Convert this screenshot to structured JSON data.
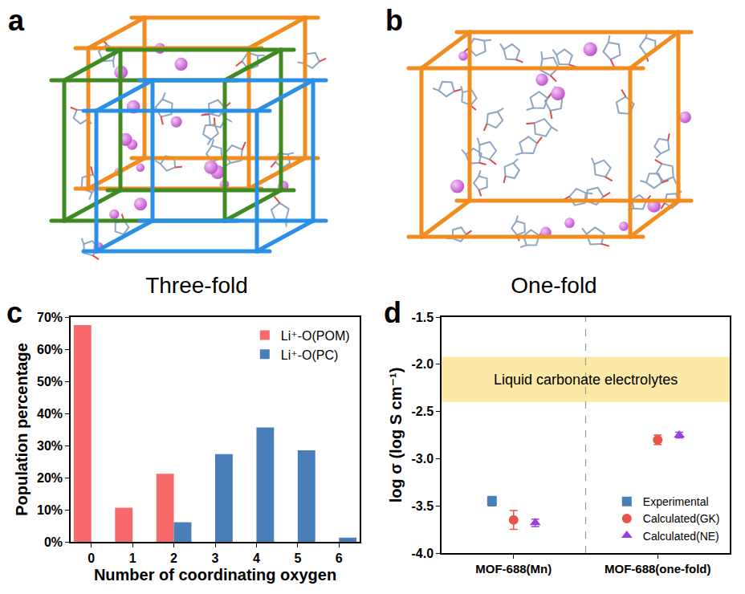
{
  "diagrams": [
    {
      "panel": "a",
      "label": "Three-fold",
      "colors": [
        "#f28c1e",
        "#3f8a22",
        "#2a8fe6"
      ]
    },
    {
      "panel": "b",
      "label": "One-fold",
      "colors": [
        "#f28c1e"
      ]
    }
  ],
  "chart_data": [
    {
      "panel": "c",
      "type": "bar",
      "x_label": "Number of coordinating oxygen",
      "y_label": "Population percentage",
      "x": [
        0,
        1,
        2,
        3,
        4,
        5,
        6
      ],
      "series": [
        {
          "name": "Li⁺-O(POM)",
          "color": "#f7696b",
          "values": [
            67.5,
            10.6,
            21.2,
            0,
            0,
            0,
            0
          ]
        },
        {
          "name": "Li⁺-O(PC)",
          "color": "#4a7eb8",
          "values": [
            0,
            0,
            6.1,
            27.3,
            35.6,
            28.5,
            1.3
          ]
        }
      ],
      "xlim": [
        -0.5,
        6.5
      ],
      "xticks": [
        0,
        1,
        2,
        3,
        4,
        5,
        6
      ],
      "ylim": [
        0,
        70
      ],
      "yticks": [
        {
          "value": 0,
          "label": "0%"
        },
        {
          "value": 10,
          "label": "10%"
        },
        {
          "value": 20,
          "label": "20%"
        },
        {
          "value": 30,
          "label": "30%"
        },
        {
          "value": 40,
          "label": "40%"
        },
        {
          "value": 50,
          "label": "50%"
        },
        {
          "value": 60,
          "label": "60%"
        },
        {
          "value": 70,
          "label": "70%"
        }
      ],
      "legend": "upper right"
    },
    {
      "panel": "d",
      "type": "scatter",
      "y_label": "log σ (log S cm⁻¹)",
      "categories": [
        "MOF-688(Mn)",
        "MOF-688(one-fold)"
      ],
      "series": [
        {
          "name": "Experimental",
          "color": "#4a7eb8",
          "marker": "square",
          "values": [
            -3.45,
            null
          ],
          "errors": [
            0.05,
            null
          ]
        },
        {
          "name": "Calculated(GK)",
          "color": "#e8534a",
          "marker": "circle",
          "values": [
            -3.65,
            -2.8
          ],
          "errors": [
            0.1,
            0.05
          ]
        },
        {
          "name": "Calculated(NE)",
          "color": "#9b40e0",
          "marker": "triangle",
          "values": [
            -3.68,
            -2.75
          ],
          "errors": [
            0.04,
            0.03
          ]
        }
      ],
      "ylim": [
        -4,
        -1.5
      ],
      "yticks": [
        {
          "value": -4,
          "label": "-4.0"
        },
        {
          "value": -3.5,
          "label": "-3.5"
        },
        {
          "value": -3,
          "label": "-3.0"
        },
        {
          "value": -2.5,
          "label": "-2.5"
        },
        {
          "value": -2,
          "label": "-2.0"
        },
        {
          "value": -1.5,
          "label": "-1.5"
        }
      ],
      "shaded_band": {
        "label": "Liquid carbonate electrolytes",
        "range": [
          -2.4,
          -1.92
        ],
        "color": "#fde9a6"
      },
      "legend": "lower right"
    }
  ]
}
